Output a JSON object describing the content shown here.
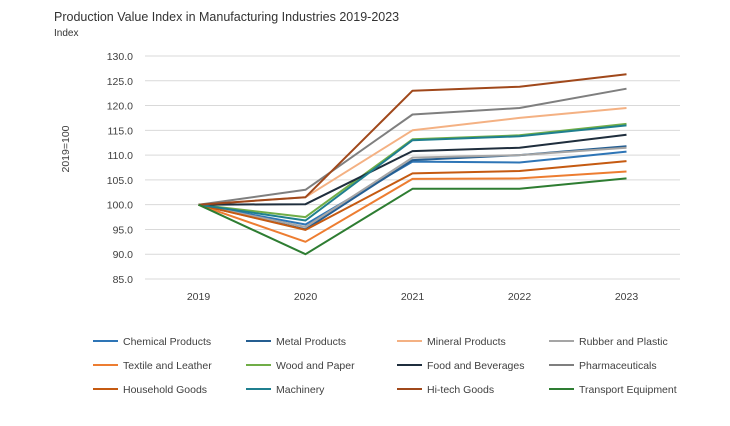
{
  "chart_data": {
    "type": "line",
    "title": "Production Value Index in Manufacturing Industries 2019-2023",
    "subtitle": "Index",
    "xlabel": "",
    "ylabel": "2019=100",
    "ylim": [
      85,
      130
    ],
    "yticks": [
      "85.0",
      "90.0",
      "95.0",
      "100.0",
      "105.0",
      "110.0",
      "115.0",
      "120.0",
      "125.0",
      "130.0"
    ],
    "categories": [
      "2019",
      "2020",
      "2021",
      "2022",
      "2023"
    ],
    "grid": "horizontal",
    "legend_position": "bottom",
    "series": [
      {
        "name": "Chemical Products",
        "color": "#2e75b6",
        "values": [
          100,
          96.0,
          108.7,
          108.5,
          110.7
        ]
      },
      {
        "name": "Metal Products",
        "color": "#255e91",
        "values": [
          100,
          95.0,
          109.0,
          110.0,
          111.8
        ]
      },
      {
        "name": "Mineral Products",
        "color": "#f4b183",
        "values": [
          100,
          101.5,
          115.0,
          117.5,
          119.5
        ]
      },
      {
        "name": "Rubber and Plastic",
        "color": "#a5a5a5",
        "values": [
          100,
          95.5,
          109.5,
          110.0,
          111.5
        ]
      },
      {
        "name": "Textile and Leather",
        "color": "#ed7d31",
        "values": [
          100,
          92.5,
          105.2,
          105.3,
          106.7
        ]
      },
      {
        "name": "Wood and Paper",
        "color": "#70ad47",
        "values": [
          100,
          97.5,
          113.2,
          114.0,
          116.3
        ]
      },
      {
        "name": "Food and Beverages",
        "color": "#1f2e3d",
        "values": [
          100,
          100.1,
          110.8,
          111.5,
          114.1
        ]
      },
      {
        "name": "Pharmaceuticals",
        "color": "#7f7f7f",
        "values": [
          100,
          103.0,
          118.2,
          119.5,
          123.4
        ]
      },
      {
        "name": "Household Goods",
        "color": "#c55a11",
        "values": [
          100,
          94.9,
          106.3,
          106.8,
          108.8
        ]
      },
      {
        "name": "Machinery",
        "color": "#1f7f8f",
        "values": [
          100,
          96.8,
          113.0,
          113.8,
          116.0
        ]
      },
      {
        "name": "Hi-tech Goods",
        "color": "#a0481b",
        "values": [
          100,
          101.5,
          123.0,
          123.8,
          126.3
        ]
      },
      {
        "name": "Transport Equipment",
        "color": "#2e7d32",
        "values": [
          100,
          90.0,
          103.2,
          103.2,
          105.3
        ]
      }
    ]
  }
}
